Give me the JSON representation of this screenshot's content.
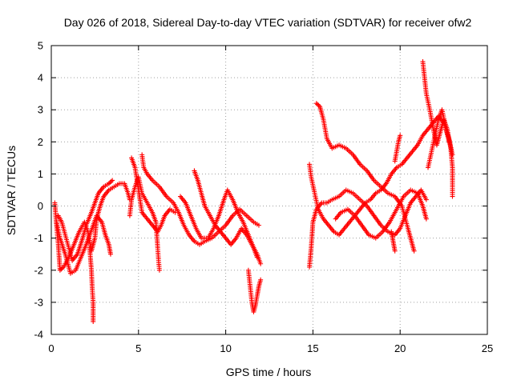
{
  "chart_data": {
    "type": "scatter",
    "title": "Day 026 of 2018, Sidereal Day-to-day VTEC variation (SDTVAR) for receiver ofw2",
    "xlabel": "GPS time / hours",
    "ylabel": "SDTVAR / TECUs",
    "xlim": [
      0,
      25
    ],
    "ylim": [
      -4,
      5
    ],
    "x_ticks": [
      0,
      5,
      10,
      15,
      20,
      25
    ],
    "y_ticks": [
      -4,
      -3,
      -2,
      -1,
      0,
      1,
      2,
      3,
      4,
      5
    ],
    "grid": true,
    "marker": "+",
    "series": [
      {
        "name": "SDTVAR",
        "color": "#ff0000",
        "tracks": [
          [
            [
              0.2,
              0.1
            ],
            [
              0.3,
              -0.6
            ],
            [
              0.4,
              -1.2
            ],
            [
              0.5,
              -2.0
            ],
            [
              0.7,
              -1.9
            ],
            [
              1.0,
              -1.6
            ],
            [
              1.3,
              -1.2
            ],
            [
              1.6,
              -0.8
            ],
            [
              1.9,
              -0.5
            ],
            [
              2.1,
              -0.8
            ],
            [
              2.3,
              -1.4
            ],
            [
              2.5,
              -1.0
            ],
            [
              2.6,
              -0.4
            ],
            [
              2.8,
              0.0
            ],
            [
              3.0,
              0.3
            ],
            [
              3.3,
              0.5
            ],
            [
              3.6,
              0.6
            ],
            [
              3.9,
              0.7
            ],
            [
              4.2,
              0.7
            ],
            [
              4.4,
              0.4
            ],
            [
              4.5,
              0.2
            ]
          ],
          [
            [
              0.3,
              -0.5
            ],
            [
              0.5,
              -1.0
            ],
            [
              0.8,
              -1.5
            ],
            [
              1.1,
              -2.1
            ],
            [
              1.4,
              -2.0
            ],
            [
              1.7,
              -1.6
            ],
            [
              2.0,
              -1.2
            ],
            [
              2.2,
              -0.9
            ],
            [
              2.4,
              -0.6
            ],
            [
              2.6,
              -0.3
            ],
            [
              2.9,
              -0.5
            ],
            [
              3.1,
              -0.9
            ],
            [
              3.3,
              -1.2
            ],
            [
              3.4,
              -1.5
            ]
          ],
          [
            [
              0.4,
              -0.3
            ],
            [
              0.6,
              -0.5
            ],
            [
              0.9,
              -1.1
            ],
            [
              1.2,
              -1.7
            ],
            [
              1.5,
              -1.5
            ],
            [
              1.8,
              -1.0
            ],
            [
              2.0,
              -0.6
            ],
            [
              2.3,
              -0.2
            ],
            [
              2.5,
              0.1
            ],
            [
              2.7,
              0.4
            ],
            [
              3.0,
              0.6
            ],
            [
              3.3,
              0.7
            ],
            [
              3.5,
              0.8
            ]
          ],
          [
            [
              2.2,
              -1.3
            ],
            [
              2.3,
              -2.0
            ],
            [
              2.35,
              -2.6
            ],
            [
              2.4,
              -3.0
            ],
            [
              2.4,
              -3.6
            ]
          ],
          [
            [
              4.5,
              -0.3
            ],
            [
              4.6,
              0.2
            ],
            [
              4.8,
              0.6
            ],
            [
              5.0,
              0.9
            ],
            [
              5.2,
              0.4
            ],
            [
              5.5,
              0.1
            ],
            [
              5.8,
              -0.2
            ],
            [
              6.0,
              -0.5
            ],
            [
              6.1,
              -1.3
            ],
            [
              6.15,
              -1.7
            ],
            [
              6.2,
              -2.0
            ]
          ],
          [
            [
              4.6,
              1.5
            ],
            [
              4.8,
              1.2
            ],
            [
              5.0,
              0.5
            ],
            [
              5.2,
              -0.2
            ],
            [
              5.5,
              -0.4
            ],
            [
              5.8,
              -0.6
            ],
            [
              6.1,
              -0.8
            ],
            [
              6.3,
              -0.6
            ],
            [
              6.5,
              -0.3
            ],
            [
              6.8,
              -0.1
            ],
            [
              7.1,
              -0.2
            ]
          ],
          [
            [
              5.2,
              1.6
            ],
            [
              5.3,
              1.2
            ],
            [
              5.5,
              1.0
            ],
            [
              5.8,
              0.8
            ],
            [
              6.2,
              0.6
            ],
            [
              6.6,
              0.3
            ],
            [
              7.0,
              0.1
            ],
            [
              7.3,
              -0.2
            ],
            [
              7.6,
              -0.6
            ],
            [
              7.9,
              -0.9
            ],
            [
              8.2,
              -1.1
            ],
            [
              8.5,
              -1.2
            ],
            [
              8.8,
              -1.1
            ],
            [
              9.2,
              -1.0
            ],
            [
              9.6,
              -0.8
            ],
            [
              10.0,
              -0.6
            ],
            [
              10.4,
              -0.3
            ],
            [
              10.8,
              -0.1
            ],
            [
              11.2,
              -0.3
            ],
            [
              11.6,
              -0.5
            ],
            [
              11.9,
              -0.6
            ]
          ],
          [
            [
              7.4,
              0.3
            ],
            [
              7.7,
              0.1
            ],
            [
              8.0,
              -0.3
            ],
            [
              8.3,
              -0.7
            ],
            [
              8.6,
              -1.0
            ],
            [
              9.0,
              -1.0
            ],
            [
              9.3,
              -0.7
            ],
            [
              9.6,
              -0.3
            ],
            [
              9.9,
              0.2
            ],
            [
              10.1,
              0.5
            ],
            [
              10.4,
              0.2
            ],
            [
              10.7,
              -0.2
            ],
            [
              11.0,
              -0.5
            ],
            [
              11.3,
              -0.9
            ],
            [
              11.6,
              -1.3
            ],
            [
              11.8,
              -1.6
            ]
          ],
          [
            [
              8.2,
              1.1
            ],
            [
              8.4,
              0.8
            ],
            [
              8.6,
              0.4
            ],
            [
              8.8,
              0.0
            ],
            [
              9.1,
              -0.3
            ],
            [
              9.4,
              -0.6
            ],
            [
              9.7,
              -0.8
            ],
            [
              10.0,
              -1.0
            ],
            [
              10.3,
              -1.2
            ],
            [
              10.6,
              -1.0
            ],
            [
              10.9,
              -0.7
            ],
            [
              11.2,
              -0.9
            ],
            [
              11.5,
              -1.2
            ],
            [
              11.8,
              -1.5
            ],
            [
              12.0,
              -1.8
            ]
          ],
          [
            [
              11.3,
              -2.0
            ],
            [
              11.4,
              -2.5
            ],
            [
              11.5,
              -3.0
            ],
            [
              11.6,
              -3.3
            ],
            [
              11.7,
              -3.1
            ],
            [
              11.8,
              -2.8
            ],
            [
              11.9,
              -2.5
            ],
            [
              12.0,
              -2.3
            ]
          ],
          [
            [
              14.8,
              -1.9
            ],
            [
              14.9,
              -1.3
            ],
            [
              15.0,
              -0.5
            ],
            [
              15.2,
              -0.1
            ],
            [
              15.5,
              0.1
            ],
            [
              15.8,
              0.1
            ],
            [
              16.1,
              0.2
            ],
            [
              16.5,
              0.3
            ],
            [
              16.9,
              0.5
            ],
            [
              17.3,
              0.4
            ],
            [
              17.7,
              0.2
            ],
            [
              18.1,
              0.0
            ],
            [
              18.5,
              -0.3
            ],
            [
              18.9,
              -0.6
            ],
            [
              19.3,
              -0.8
            ],
            [
              19.7,
              -0.9
            ],
            [
              20.0,
              -0.7
            ],
            [
              20.3,
              -0.3
            ],
            [
              20.6,
              0.1
            ],
            [
              20.9,
              0.3
            ],
            [
              21.2,
              0.5
            ],
            [
              21.5,
              0.2
            ]
          ],
          [
            [
              14.8,
              1.3
            ],
            [
              14.9,
              0.9
            ],
            [
              15.1,
              0.4
            ],
            [
              15.3,
              -0.1
            ],
            [
              15.6,
              -0.4
            ],
            [
              15.9,
              -0.6
            ],
            [
              16.2,
              -0.8
            ],
            [
              16.5,
              -0.9
            ],
            [
              16.8,
              -0.7
            ],
            [
              17.1,
              -0.5
            ],
            [
              17.4,
              -0.3
            ],
            [
              17.7,
              -0.1
            ],
            [
              18.0,
              0.1
            ],
            [
              18.3,
              0.2
            ],
            [
              18.6,
              0.4
            ],
            [
              18.9,
              0.5
            ],
            [
              19.2,
              0.7
            ],
            [
              19.5,
              1.0
            ],
            [
              19.8,
              1.2
            ],
            [
              20.1,
              1.3
            ],
            [
              20.4,
              1.5
            ],
            [
              20.7,
              1.7
            ],
            [
              21.0,
              1.9
            ],
            [
              21.3,
              2.2
            ],
            [
              21.6,
              2.4
            ],
            [
              21.9,
              2.6
            ],
            [
              22.2,
              2.8
            ],
            [
              22.5,
              2.6
            ],
            [
              22.8,
              2.1
            ],
            [
              23.0,
              1.6
            ]
          ],
          [
            [
              15.2,
              3.2
            ],
            [
              15.4,
              3.1
            ],
            [
              15.6,
              2.7
            ],
            [
              15.8,
              2.1
            ],
            [
              16.1,
              1.8
            ],
            [
              16.5,
              1.9
            ],
            [
              16.9,
              1.8
            ],
            [
              17.3,
              1.6
            ],
            [
              17.7,
              1.3
            ],
            [
              18.1,
              1.1
            ],
            [
              18.5,
              0.8
            ],
            [
              18.9,
              0.6
            ],
            [
              19.3,
              0.4
            ],
            [
              19.7,
              0.3
            ],
            [
              20.1,
              0.0
            ],
            [
              20.4,
              -0.6
            ],
            [
              20.6,
              -1.0
            ],
            [
              20.8,
              -1.4
            ]
          ],
          [
            [
              16.3,
              -0.4
            ],
            [
              16.6,
              -0.2
            ],
            [
              17.0,
              -0.1
            ],
            [
              17.4,
              -0.3
            ],
            [
              17.8,
              -0.6
            ],
            [
              18.2,
              -0.9
            ],
            [
              18.6,
              -1.0
            ],
            [
              19.0,
              -0.8
            ],
            [
              19.4,
              -0.5
            ],
            [
              19.8,
              -0.1
            ],
            [
              20.2,
              0.3
            ],
            [
              20.6,
              0.5
            ],
            [
              21.0,
              0.4
            ],
            [
              21.3,
              0.0
            ],
            [
              21.5,
              -0.4
            ]
          ],
          [
            [
              19.5,
              -0.8
            ],
            [
              19.6,
              -1.1
            ],
            [
              19.7,
              -1.4
            ]
          ],
          [
            [
              19.7,
              1.4
            ],
            [
              19.9,
              2.0
            ],
            [
              20.0,
              2.2
            ]
          ],
          [
            [
              21.3,
              4.5
            ],
            [
              21.4,
              4.0
            ],
            [
              21.5,
              3.5
            ],
            [
              21.7,
              3.0
            ],
            [
              21.9,
              2.4
            ],
            [
              22.1,
              1.9
            ],
            [
              22.3,
              2.3
            ],
            [
              22.5,
              2.7
            ],
            [
              22.7,
              2.4
            ],
            [
              22.9,
              1.8
            ],
            [
              23.0,
              1.2
            ],
            [
              23.0,
              0.6
            ],
            [
              23.0,
              0.3
            ]
          ],
          [
            [
              21.6,
              1.2
            ],
            [
              21.8,
              1.7
            ],
            [
              22.0,
              2.2
            ],
            [
              22.2,
              2.7
            ],
            [
              22.4,
              3.0
            ],
            [
              22.6,
              2.5
            ],
            [
              22.8,
              2.0
            ]
          ]
        ]
      }
    ]
  }
}
